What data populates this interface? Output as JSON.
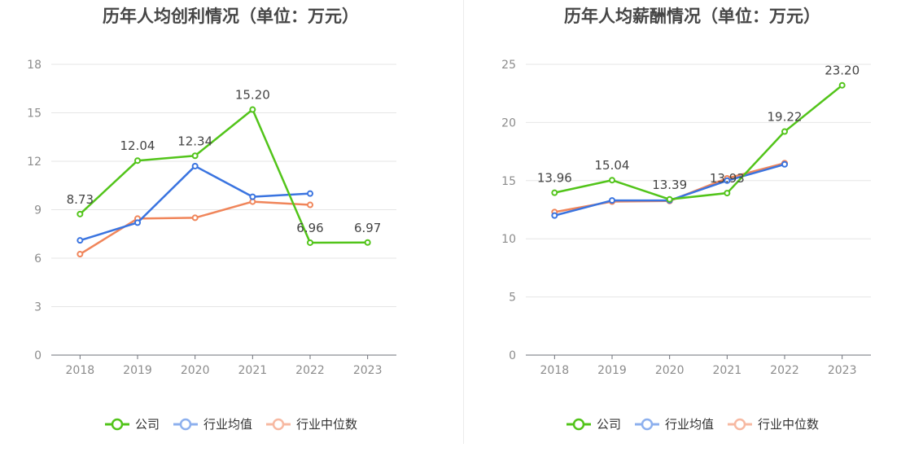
{
  "colors": {
    "company": "#52c41a",
    "industry_avg": "#3a74e0",
    "industry_median": "#f0855a",
    "legend_avg": "#8db0ee",
    "legend_median": "#f7b9a2"
  },
  "legend": {
    "company": "公司",
    "industry_avg": "行业均值",
    "industry_median": "行业中位数"
  },
  "chart_data": [
    {
      "type": "line",
      "title": "历年人均创利情况（单位：万元）",
      "xlabel": "",
      "ylabel": "",
      "ylim": [
        0,
        18
      ],
      "yticks": [
        0,
        3,
        6,
        9,
        12,
        15,
        18
      ],
      "x": [
        "2018",
        "2019",
        "2020",
        "2021",
        "2022",
        "2023"
      ],
      "grid": true,
      "legend_position": "bottom",
      "series": [
        {
          "name": "公司",
          "values": [
            8.73,
            12.04,
            12.34,
            15.2,
            6.96,
            6.97
          ],
          "labels": [
            "8.73",
            "12.04",
            "12.34",
            "15.20",
            "6.96",
            "6.97"
          ]
        },
        {
          "name": "行业均值",
          "values": [
            7.1,
            8.2,
            11.7,
            9.8,
            10.0,
            null
          ]
        },
        {
          "name": "行业中位数",
          "values": [
            6.25,
            8.45,
            8.5,
            9.5,
            9.3,
            null
          ]
        }
      ]
    },
    {
      "type": "line",
      "title": "历年人均薪酬情况（单位：万元）",
      "xlabel": "",
      "ylabel": "",
      "ylim": [
        0,
        25
      ],
      "yticks": [
        0,
        5,
        10,
        15,
        20,
        25
      ],
      "x": [
        "2018",
        "2019",
        "2020",
        "2021",
        "2022",
        "2023"
      ],
      "grid": true,
      "legend_position": "bottom",
      "series": [
        {
          "name": "公司",
          "values": [
            13.96,
            15.04,
            13.39,
            13.93,
            19.22,
            23.2
          ],
          "labels": [
            "13.96",
            "15.04",
            "13.39",
            "13.93",
            "19.22",
            "23.20"
          ]
        },
        {
          "name": "行业均值",
          "values": [
            12.0,
            13.3,
            13.3,
            15.0,
            16.4,
            null
          ]
        },
        {
          "name": "行业中位数",
          "values": [
            12.3,
            13.2,
            13.25,
            15.2,
            16.5,
            null
          ]
        }
      ]
    }
  ]
}
